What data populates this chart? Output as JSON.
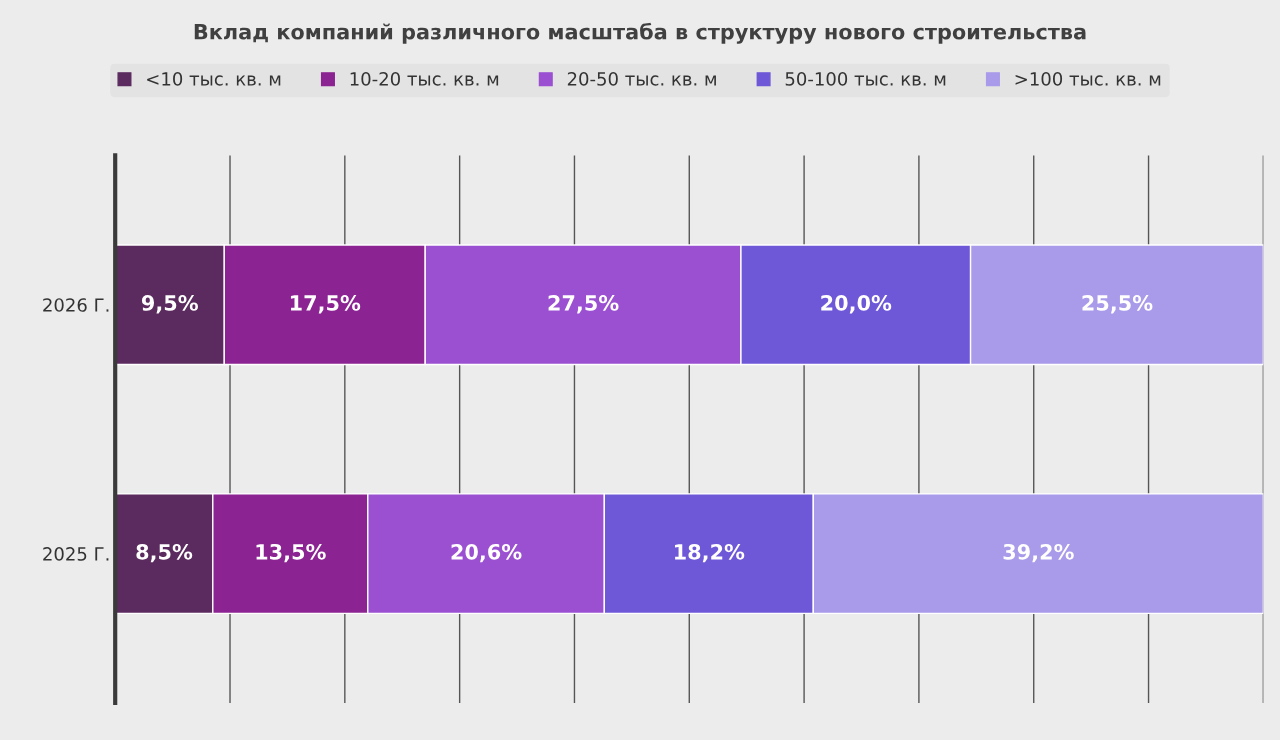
{
  "chart_data": {
    "type": "bar",
    "orientation": "horizontal",
    "stacked": true,
    "title": "Вклад компаний различного масштаба в структуру нового строительства",
    "categories": [
      "2026 Г.",
      "2025 Г."
    ],
    "series": [
      {
        "name": "<10 тыс. кв. м",
        "color": "#5b2a5f",
        "values": [
          9.5,
          8.5
        ],
        "value_labels": [
          "9,5%",
          "8,5%"
        ]
      },
      {
        "name": "10-20 тыс. кв. м",
        "color": "#8c2392",
        "values": [
          17.5,
          13.5
        ],
        "value_labels": [
          "17,5%",
          "13,5%"
        ]
      },
      {
        "name": "20-50 тыс. кв. м",
        "color": "#9b50d2",
        "values": [
          27.5,
          20.6
        ],
        "value_labels": [
          "27,5%",
          "20,6%"
        ]
      },
      {
        "name": "50-100 тыс. кв. м",
        "color": "#6f58d8",
        "values": [
          20.0,
          18.2
        ],
        "value_labels": [
          "20,0%",
          "18,2%"
        ]
      },
      {
        "name": ">100 тыс. кв. м",
        "color": "#a99aea",
        "values": [
          25.5,
          39.2
        ],
        "value_labels": [
          "25,5%",
          "39,2%"
        ]
      }
    ],
    "xlim": [
      0,
      100
    ],
    "xticks": [
      {
        "value": 0,
        "label": null
      },
      {
        "value": 10,
        "label": null
      },
      {
        "value": 20,
        "label": null
      },
      {
        "value": 30,
        "label": null
      },
      {
        "value": 40,
        "label": null
      },
      {
        "value": 50,
        "label": null
      },
      {
        "value": 60,
        "label": null
      },
      {
        "value": 70,
        "label": null
      },
      {
        "value": 80,
        "label": null
      },
      {
        "value": 90,
        "label": null
      },
      {
        "value": 100,
        "label": null
      }
    ],
    "tick_labels": "y",
    "grid": "x",
    "legend": "top"
  }
}
